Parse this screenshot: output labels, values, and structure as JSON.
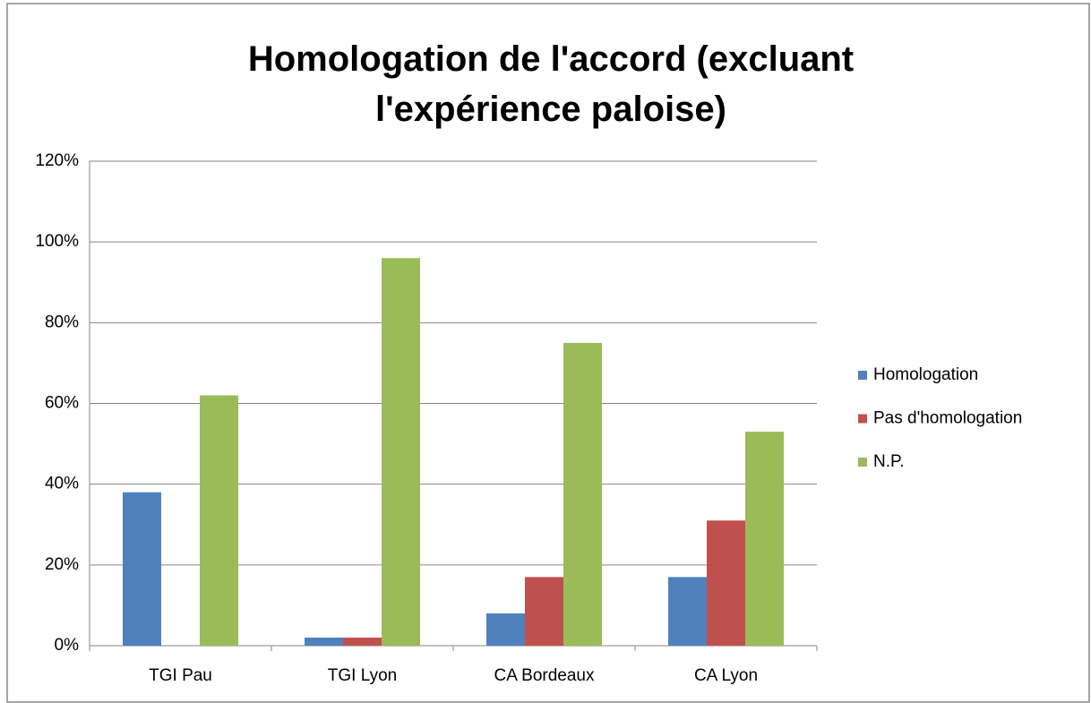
{
  "chart_data": {
    "type": "bar",
    "title": "Homologation de l'accord (excluant l'expérience paloise)",
    "categories": [
      "TGI Pau",
      "TGI Lyon",
      "CA Bordeaux",
      "CA Lyon"
    ],
    "series": [
      {
        "name": "Homologation",
        "color": "#4f81bd",
        "values": [
          38,
          2,
          8,
          17
        ]
      },
      {
        "name": "Pas d'homologation",
        "color": "#c0504d",
        "values": [
          0,
          2,
          17,
          31
        ]
      },
      {
        "name": "N.P.",
        "color": "#9bbb59",
        "values": [
          62,
          96,
          75,
          53
        ]
      }
    ],
    "ylim": [
      0,
      120
    ],
    "yticks": [
      {
        "value": 0,
        "label": "0%"
      },
      {
        "value": 20,
        "label": "20%"
      },
      {
        "value": 40,
        "label": "40%"
      },
      {
        "value": 60,
        "label": "60%"
      },
      {
        "value": 80,
        "label": "80%"
      },
      {
        "value": 100,
        "label": "100%"
      },
      {
        "value": 120,
        "label": "120%"
      }
    ],
    "grid": true,
    "legend": "right"
  }
}
